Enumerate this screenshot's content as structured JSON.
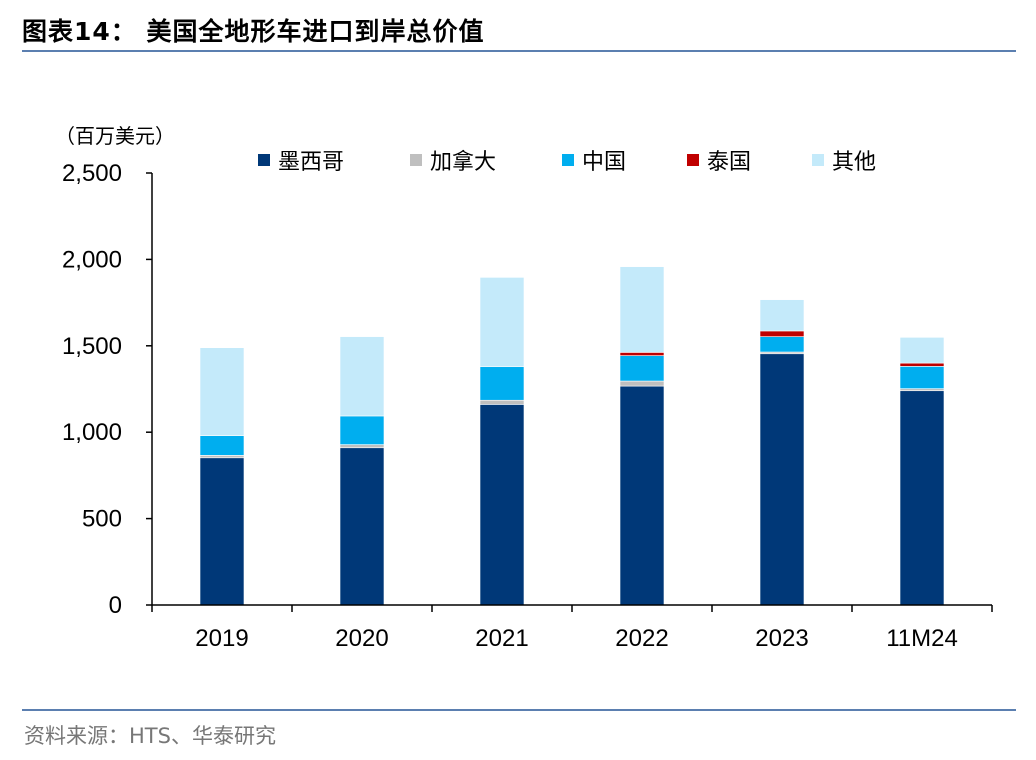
{
  "title": "图表14：  美国全地形车进口到岸总价值",
  "source": "资料来源：HTS、华泰研究",
  "chart_data": {
    "type": "bar",
    "stacked": true,
    "title": "",
    "ylabel": "（百万美元）",
    "ylim": [
      0,
      2500
    ],
    "yticks": [
      0,
      500,
      1000,
      1500,
      2000,
      2500
    ],
    "ytick_labels": [
      "0",
      "500",
      "1,000",
      "1,500",
      "2,000",
      "2,500"
    ],
    "legend_position": "top",
    "grid": false,
    "categories": [
      "2019",
      "2020",
      "2021",
      "2022",
      "2023",
      "11M24"
    ],
    "series": [
      {
        "name": "墨西哥",
        "color": "#003878",
        "values": [
          852,
          910,
          1161,
          1267,
          1454,
          1240
        ]
      },
      {
        "name": "加拿大",
        "color": "#bfbfbf",
        "values": [
          14,
          18,
          24,
          29,
          10,
          12
        ]
      },
      {
        "name": "中国",
        "color": "#00aeef",
        "values": [
          114,
          166,
          194,
          147,
          89,
          129
        ]
      },
      {
        "name": "泰国",
        "color": "#c00000",
        "values": [
          0,
          0,
          0,
          19,
          33,
          19
        ]
      },
      {
        "name": "其他",
        "color": "#c4eafa",
        "values": [
          509,
          459,
          517,
          496,
          181,
          149
        ]
      }
    ]
  }
}
